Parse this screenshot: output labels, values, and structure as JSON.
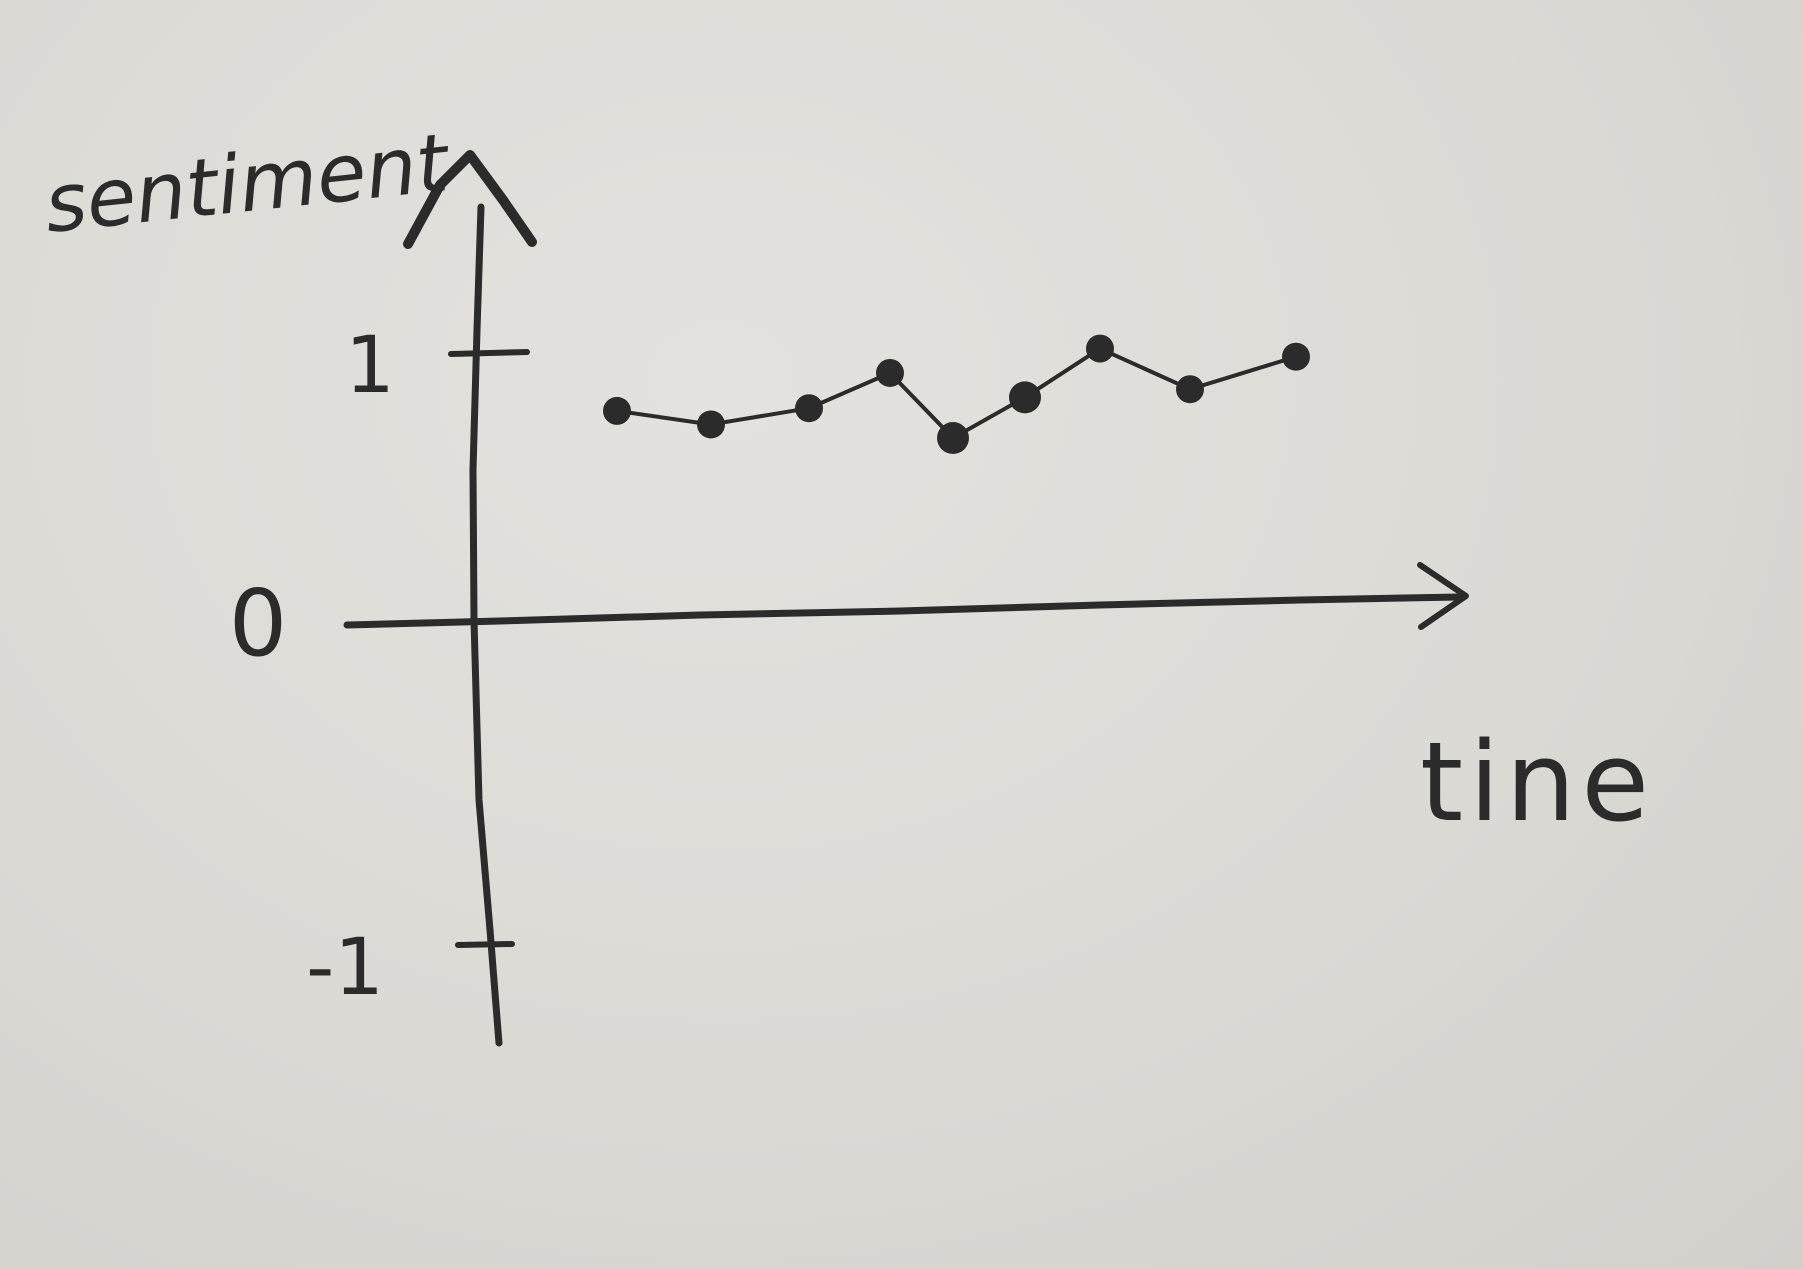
{
  "chart_data": {
    "type": "line",
    "title": "",
    "xlabel": "tine",
    "ylabel": "sentiment",
    "y_ticks": [
      "1",
      "0",
      "-1"
    ],
    "ylim": [
      -1,
      1
    ],
    "grid": false,
    "legend": "none",
    "series": [
      {
        "x": [
          1,
          2,
          3,
          4,
          5,
          6,
          7,
          8,
          9
        ],
        "values": [
          0.79,
          0.74,
          0.8,
          0.93,
          0.69,
          0.84,
          1.02,
          0.87,
          0.99
        ]
      }
    ]
  },
  "colors": {
    "paper": "#dcdad5",
    "pencil": "#2b2b2b"
  }
}
